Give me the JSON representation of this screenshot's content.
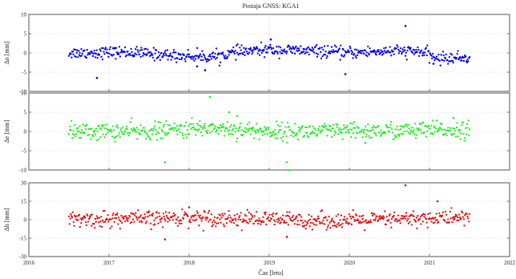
{
  "chart_data": {
    "type": "scatter",
    "title": "Postaja GNSS: KGA1",
    "xlabel": "Čas [leto]",
    "xlim": [
      2016,
      2022
    ],
    "x_ticks": [
      "2016",
      "2017",
      "2018",
      "2019",
      "2020",
      "2021",
      "2022"
    ],
    "grid": true,
    "panels": [
      {
        "name": "north",
        "ylabel": "Δn [mm]",
        "ylim": [
          -10,
          10
        ],
        "y_ticks": [
          "10",
          "5",
          "0",
          "-5",
          "-10"
        ],
        "color": "#0000e0",
        "x_range": [
          2016.5,
          2021.5
        ],
        "noise": 0.75,
        "trend": [
          [
            2016.5,
            0.0
          ],
          [
            2017.2,
            0.2
          ],
          [
            2017.9,
            -0.8
          ],
          [
            2018.3,
            -1.0
          ],
          [
            2018.6,
            0.2
          ],
          [
            2019.0,
            0.8
          ],
          [
            2019.5,
            0.5
          ],
          [
            2020.0,
            0.0
          ],
          [
            2020.5,
            0.5
          ],
          [
            2020.9,
            0.3
          ],
          [
            2021.1,
            -1.5
          ],
          [
            2021.5,
            -1.2
          ]
        ],
        "outliers": [
          [
            2016.85,
            -6.5
          ],
          [
            2018.1,
            -3.5
          ],
          [
            2018.2,
            -4.5
          ],
          [
            2019.02,
            3.5
          ],
          [
            2019.95,
            -5.5
          ],
          [
            2020.7,
            7.0
          ],
          [
            2021.05,
            -2.8
          ]
        ]
      },
      {
        "name": "east",
        "ylabel": "Δe [mm]",
        "ylim": [
          -10,
          10
        ],
        "y_ticks": [
          "10",
          "5",
          "0",
          "-5",
          "-10"
        ],
        "color": "#22ee22",
        "x_range": [
          2016.5,
          2021.5
        ],
        "noise": 1.1,
        "trend": [
          [
            2016.5,
            0.0
          ],
          [
            2017.5,
            0.0
          ],
          [
            2018.3,
            1.0
          ],
          [
            2018.6,
            0.5
          ],
          [
            2019.0,
            0.0
          ],
          [
            2020.0,
            0.0
          ],
          [
            2021.0,
            0.3
          ],
          [
            2021.5,
            0.5
          ]
        ],
        "outliers": [
          [
            2017.7,
            -8.0
          ],
          [
            2018.26,
            9.0
          ],
          [
            2018.5,
            5.0
          ],
          [
            2018.6,
            4.0
          ],
          [
            2019.22,
            -8.0
          ],
          [
            2019.24,
            -10.0
          ],
          [
            2020.2,
            -3.0
          ],
          [
            2021.3,
            3.5
          ]
        ]
      },
      {
        "name": "up",
        "ylabel": "Δh [mm]",
        "ylim": [
          -30,
          30
        ],
        "y_ticks": [
          "30",
          "15",
          "0",
          "-15",
          "-30"
        ],
        "color": "#dd1111",
        "x_range": [
          2016.5,
          2021.5
        ],
        "noise": 3.2,
        "trend": [
          [
            2016.5,
            0.0
          ],
          [
            2017.5,
            0.5
          ],
          [
            2018.0,
            2.0
          ],
          [
            2018.5,
            1.0
          ],
          [
            2019.0,
            0.0
          ],
          [
            2020.0,
            -1.0
          ],
          [
            2021.0,
            1.0
          ],
          [
            2021.5,
            2.0
          ]
        ],
        "outliers": [
          [
            2017.7,
            -16.0
          ],
          [
            2019.22,
            -14.0
          ],
          [
            2020.7,
            28.0
          ],
          [
            2021.1,
            15.0
          ],
          [
            2018.0,
            10.0
          ]
        ]
      }
    ]
  }
}
